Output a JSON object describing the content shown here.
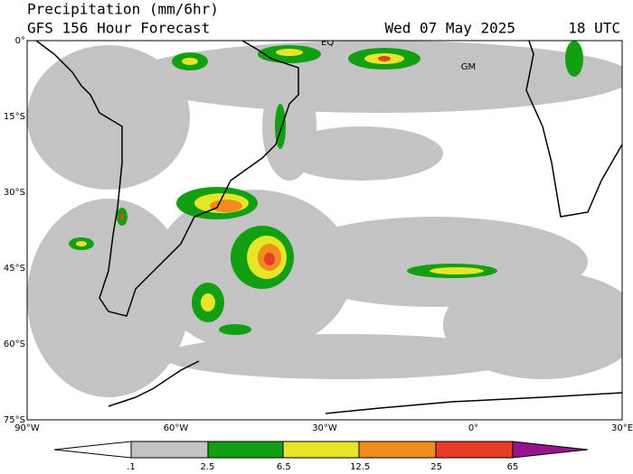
{
  "header": {
    "title": "Precipitation (mm/6hr)",
    "subtitle": "GFS 156 Hour Forecast",
    "date": "Wed 07 May 2025",
    "time": "18 UTC"
  },
  "map": {
    "lat_labels": [
      "0°",
      "15°S",
      "30°S",
      "45°S",
      "60°S",
      "75°S"
    ],
    "lon_labels": [
      "90°W",
      "60°W",
      "30°W",
      "0°",
      "30°E"
    ],
    "annotations": [
      "EQ",
      "GM"
    ]
  },
  "colorbar": {
    "labels": [
      ".1",
      "2.5",
      "6.5",
      "12.5",
      "25",
      "65"
    ]
  }
}
